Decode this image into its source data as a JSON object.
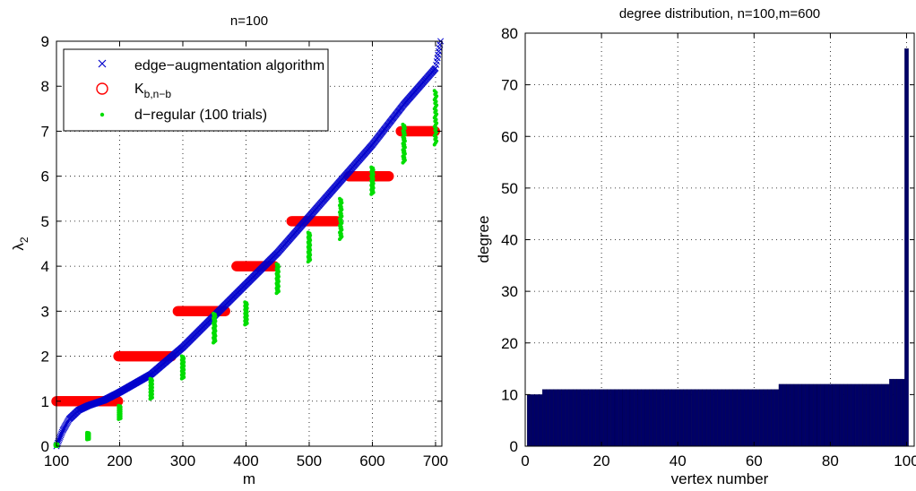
{
  "chart_data": [
    {
      "type": "scatter",
      "title": "n=100",
      "xlabel": "m",
      "ylabel": "λ",
      "ylabel_sub": "2",
      "xlim": [
        100,
        710
      ],
      "ylim": [
        0,
        9
      ],
      "xticks": [
        100,
        200,
        300,
        400,
        500,
        600,
        700
      ],
      "yticks": [
        0,
        1,
        2,
        3,
        4,
        5,
        6,
        7,
        8,
        9
      ],
      "grid": "dotted",
      "legend_position": "top-left",
      "legend": [
        {
          "marker": "x",
          "color": "#0000cc",
          "label": "edge−augmentation algorithm"
        },
        {
          "marker": "circle",
          "color": "#ff0000",
          "label": "K",
          "label_sub": "b,n−b"
        },
        {
          "marker": "dot",
          "color": "#00dd00",
          "label": "d−regular (100 trials)"
        }
      ],
      "series": [
        {
          "marker": "x",
          "color": "#0000cc",
          "curve_points": [
            [
              100,
              0
            ],
            [
              110,
              0.35
            ],
            [
              120,
              0.6
            ],
            [
              135,
              0.8
            ],
            [
              150,
              0.9
            ],
            [
              175,
              1.02
            ],
            [
              200,
              1.2
            ],
            [
              250,
              1.6
            ],
            [
              300,
              2.2
            ],
            [
              350,
              2.9
            ],
            [
              400,
              3.6
            ],
            [
              450,
              4.3
            ],
            [
              500,
              5.1
            ],
            [
              550,
              5.9
            ],
            [
              600,
              6.7
            ],
            [
              650,
              7.6
            ],
            [
              700,
              8.4
            ],
            [
              708,
              9.0
            ]
          ]
        },
        {
          "marker": "circle",
          "color": "#ff0000",
          "segments": [
            {
              "x_start": 100,
              "x_end": 198,
              "y": 1
            },
            {
              "x_start": 198,
              "x_end": 283,
              "y": 2
            },
            {
              "x_start": 292,
              "x_end": 368,
              "y": 3
            },
            {
              "x_start": 385,
              "x_end": 445,
              "y": 4
            },
            {
              "x_start": 472,
              "x_end": 545,
              "y": 5
            },
            {
              "x_start": 563,
              "x_end": 627,
              "y": 6
            },
            {
              "x_start": 645,
              "x_end": 700,
              "y": 7
            }
          ]
        },
        {
          "marker": "dot",
          "color": "#00dd00",
          "clusters": [
            {
              "x": 100,
              "y_min": 0,
              "y_max": 0.05
            },
            {
              "x": 150,
              "y_min": 0.15,
              "y_max": 0.3
            },
            {
              "x": 200,
              "y_min": 0.6,
              "y_max": 0.9
            },
            {
              "x": 250,
              "y_min": 1.05,
              "y_max": 1.5
            },
            {
              "x": 300,
              "y_min": 1.5,
              "y_max": 2.0
            },
            {
              "x": 350,
              "y_min": 2.3,
              "y_max": 2.95
            },
            {
              "x": 400,
              "y_min": 2.7,
              "y_max": 3.2
            },
            {
              "x": 450,
              "y_min": 3.4,
              "y_max": 4.05
            },
            {
              "x": 500,
              "y_min": 4.1,
              "y_max": 4.75
            },
            {
              "x": 550,
              "y_min": 4.6,
              "y_max": 5.5
            },
            {
              "x": 600,
              "y_min": 5.6,
              "y_max": 6.2
            },
            {
              "x": 650,
              "y_min": 6.3,
              "y_max": 7.15
            },
            {
              "x": 700,
              "y_min": 6.7,
              "y_max": 7.9
            }
          ]
        }
      ]
    },
    {
      "type": "bar",
      "title": "degree distribution, n=100,m=600",
      "xlabel": "vertex number",
      "ylabel": "degree",
      "xlim": [
        0,
        102
      ],
      "ylim": [
        0,
        80
      ],
      "xticks": [
        0,
        20,
        40,
        60,
        80,
        100
      ],
      "yticks": [
        0,
        10,
        20,
        30,
        40,
        50,
        60,
        70,
        80
      ],
      "grid": "dotted",
      "bar_color": "#000066",
      "values": [
        10,
        10,
        10,
        10,
        11,
        11,
        11,
        11,
        11,
        11,
        11,
        11,
        11,
        11,
        11,
        11,
        11,
        11,
        11,
        11,
        11,
        11,
        11,
        11,
        11,
        11,
        11,
        11,
        11,
        11,
        11,
        11,
        11,
        11,
        11,
        11,
        11,
        11,
        11,
        11,
        11,
        11,
        11,
        11,
        11,
        11,
        11,
        11,
        11,
        11,
        11,
        11,
        11,
        11,
        11,
        11,
        11,
        11,
        11,
        11,
        11,
        11,
        11,
        11,
        11,
        11,
        12,
        12,
        12,
        12,
        12,
        12,
        12,
        12,
        12,
        12,
        12,
        12,
        12,
        12,
        12,
        12,
        12,
        12,
        12,
        12,
        12,
        12,
        12,
        12,
        12,
        12,
        12,
        12,
        12,
        13,
        13,
        13,
        13,
        77
      ]
    }
  ]
}
